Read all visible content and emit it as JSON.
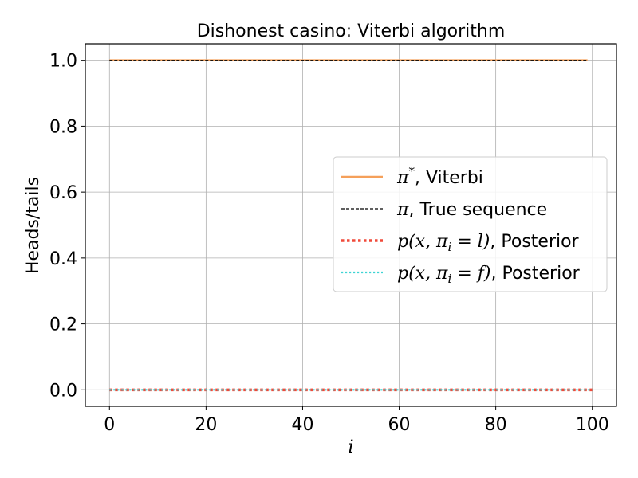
{
  "chart_data": {
    "type": "line",
    "title": "Dishonest casino: Viterbi algorithm",
    "xlabel": "i",
    "ylabel": "Heads/tails",
    "xlim": [
      -5,
      105
    ],
    "ylim": [
      -0.05,
      1.05
    ],
    "grid": true,
    "xticks": [
      0,
      20,
      40,
      60,
      80,
      100
    ],
    "yticks": [
      0.0,
      0.2,
      0.4,
      0.6,
      0.8,
      1.0
    ],
    "xtick_labels": [
      "0",
      "20",
      "40",
      "60",
      "80",
      "100"
    ],
    "ytick_labels": [
      "0.0",
      "0.2",
      "0.4",
      "0.6",
      "0.8",
      "1.0"
    ],
    "legend_position": "center-right",
    "series": [
      {
        "name": "π*, Viterbi",
        "name_math": "π",
        "name_sup": "*",
        "name_rest": ", Viterbi",
        "color": "#f5a05a",
        "style": "solid",
        "x": [
          0,
          99
        ],
        "y": [
          1.0,
          1.0
        ]
      },
      {
        "name": "π, True sequence",
        "name_math": "π",
        "name_sup": "",
        "name_rest": ", True sequence",
        "color": "#000000",
        "style": "dashed",
        "x": [
          0,
          99
        ],
        "y": [
          1.0,
          1.0
        ]
      },
      {
        "name": "p(x, πi = l), Posterior",
        "name_math": "p(x, π",
        "name_sub": "i",
        "name_math2": " = l)",
        "name_rest": ", Posterior",
        "color": "#f04a3a",
        "style": "dotted-thick",
        "x": [
          0,
          100
        ],
        "y": [
          0.0,
          0.0
        ]
      },
      {
        "name": "p(x, πi = f), Posterior",
        "name_math": "p(x, π",
        "name_sub": "i",
        "name_math2": " = f)",
        "name_rest": ", Posterior",
        "color": "#3fd4d4",
        "style": "dotted",
        "x": [
          0,
          100
        ],
        "y": [
          0.0,
          0.0
        ]
      }
    ]
  }
}
